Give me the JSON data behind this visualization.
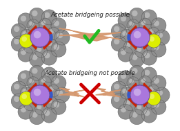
{
  "background_color": "#ffffff",
  "top_label": "Acetate bridgeing not possible",
  "bottom_label": "Acetate bridgeing possible",
  "label_fontsize": 6.2,
  "label_color": "#222222",
  "cross_color": "#cc0000",
  "check_color": "#22bb22",
  "bridge_color": "#d4956a",
  "bridge_color2": "#c07850",
  "cobalt_color": "#aa77dd",
  "nitrogen_color": "#3355cc",
  "oxygen_color": "#cc2200",
  "sulfur_color": "#ddee00",
  "carbon_color": "#909090",
  "carbon_dark": "#606060",
  "carbon_light": "#c0c0c0"
}
